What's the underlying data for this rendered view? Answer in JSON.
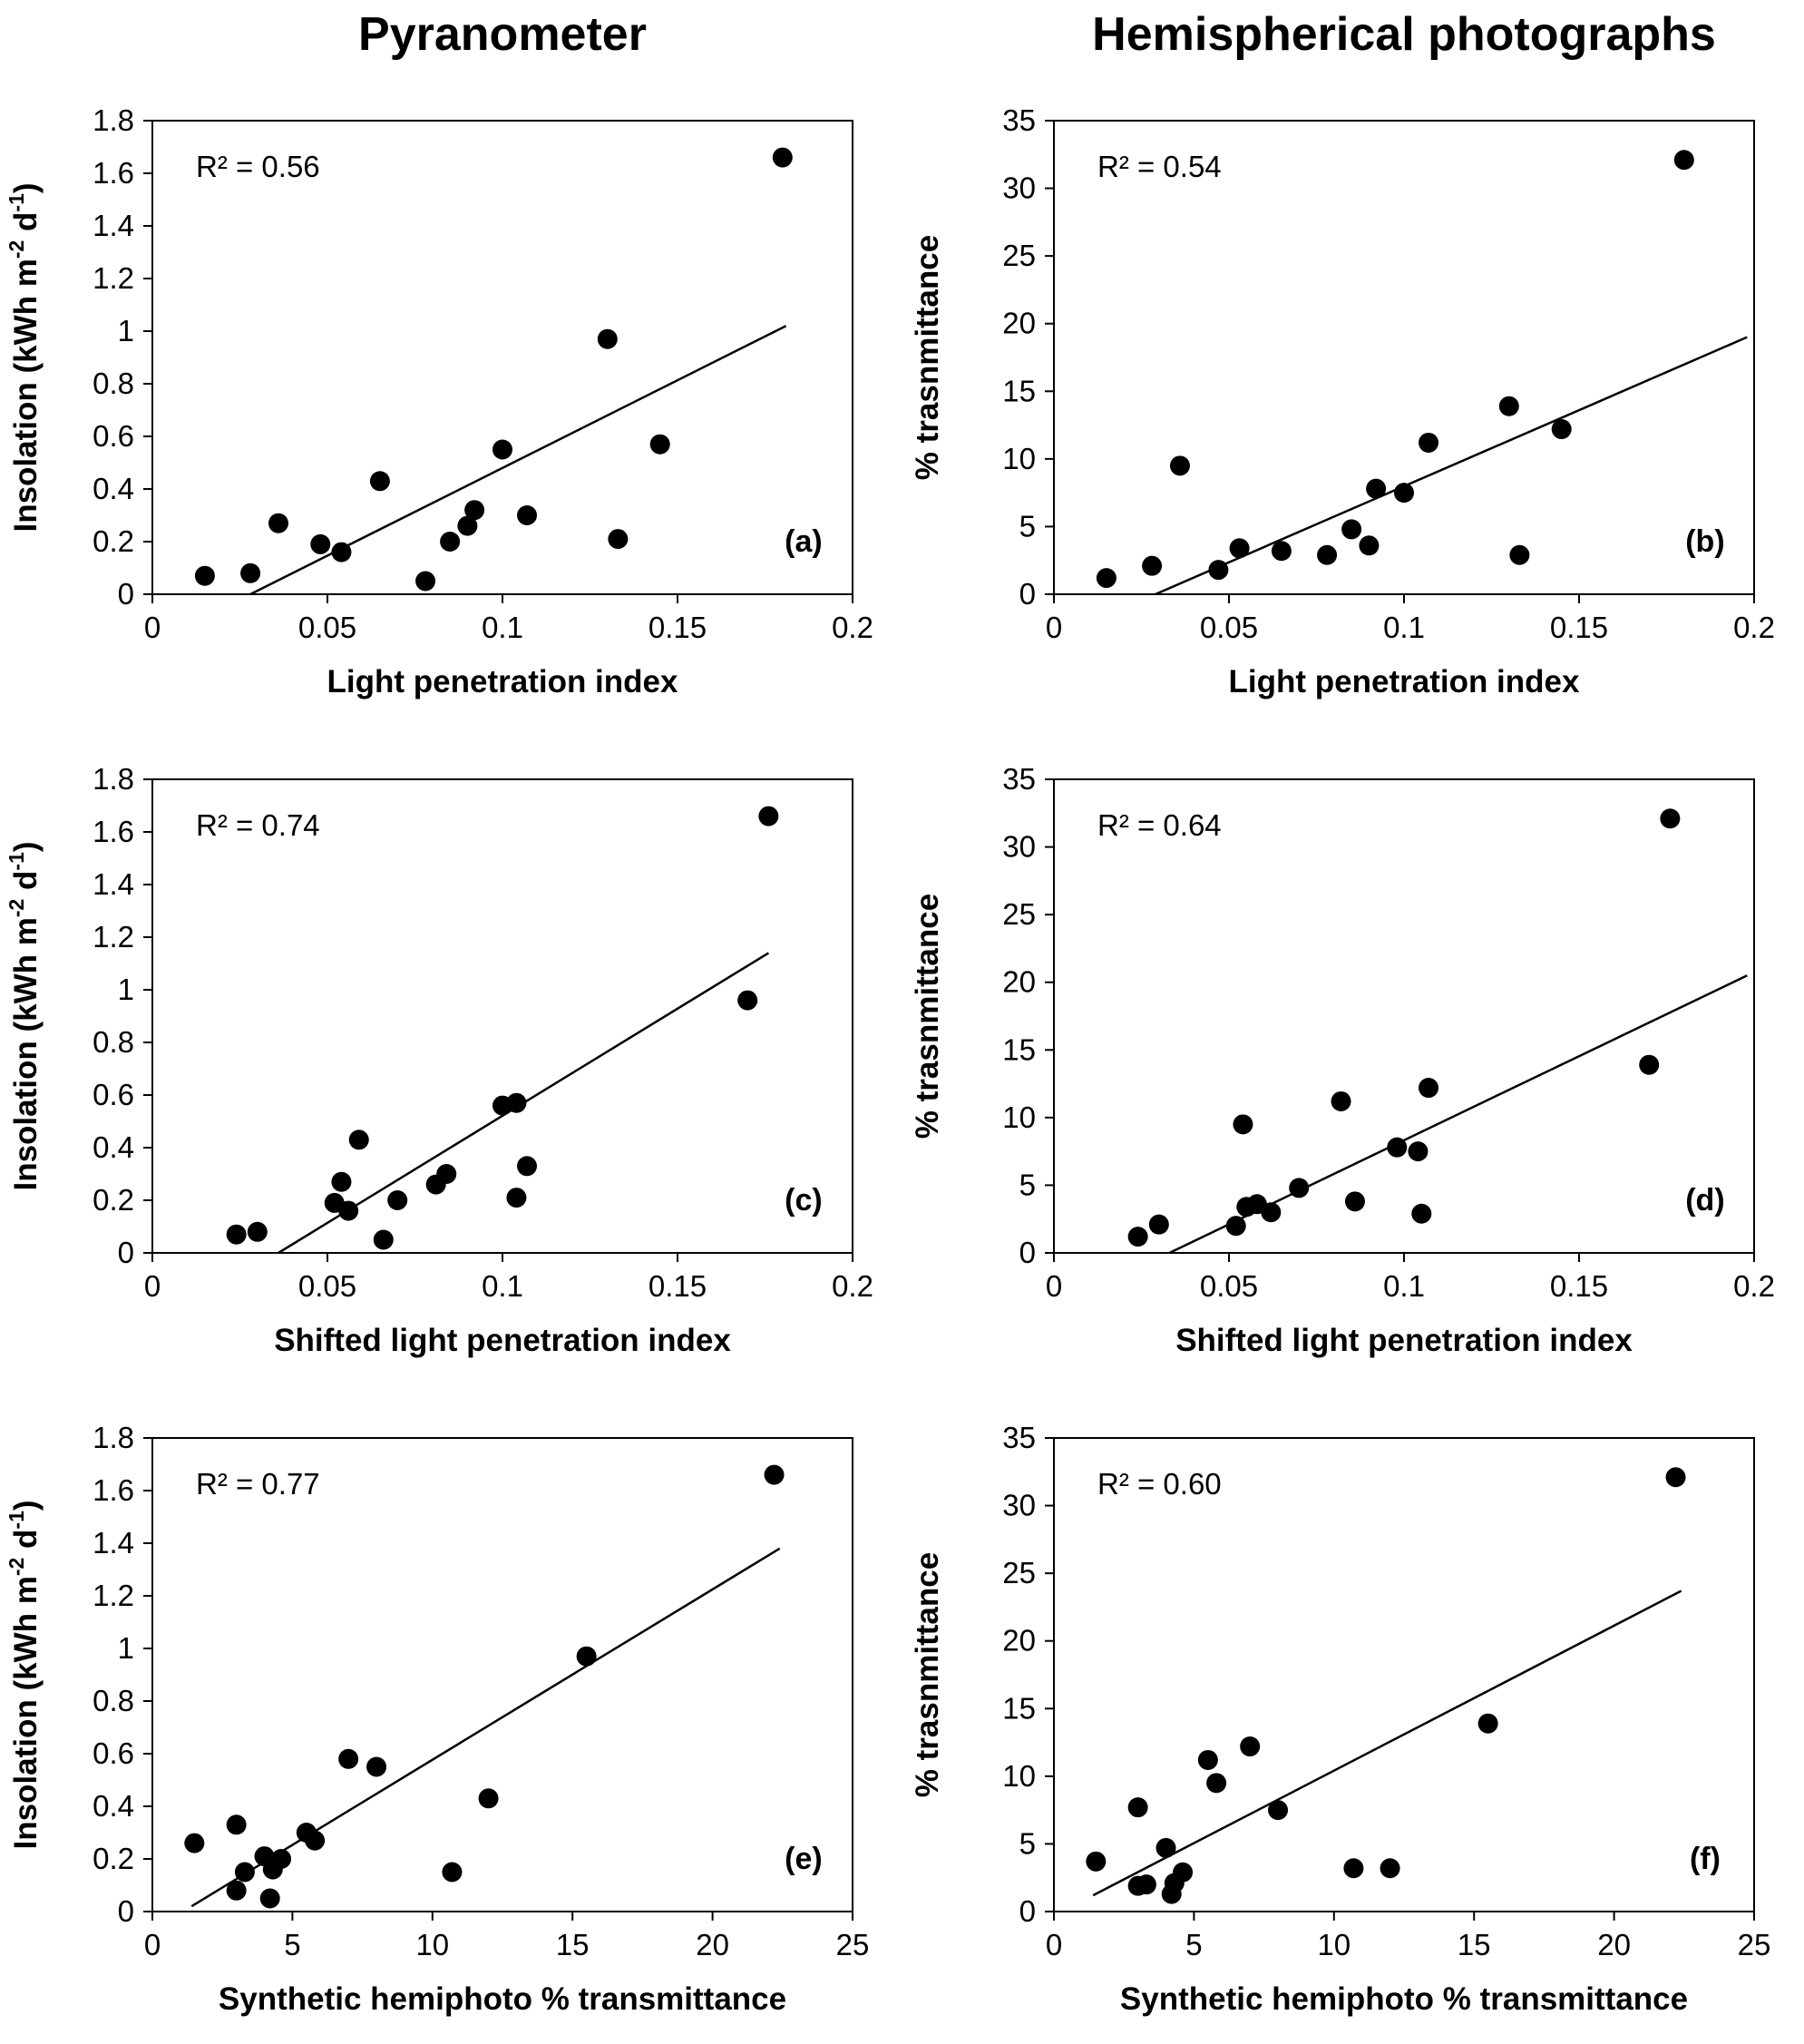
{
  "figure": {
    "background": "#ffffff",
    "foreground": "#000000",
    "column_titles": [
      "Pyranometer",
      "Hemispherical photographs"
    ]
  },
  "chart_data": [
    {
      "type": "scatter",
      "panel_label": "(a)",
      "annotation": "R² = 0.56",
      "xlabel": "Light penetration index",
      "ylabel": "Insolation (kWh m⁻² d⁻¹)",
      "ylabel_parts": [
        {
          "t": "Insolation (kWh m"
        },
        {
          "t": "-2",
          "sup": true
        },
        {
          "t": " d"
        },
        {
          "t": "-1",
          "sup": true
        },
        {
          "t": ")"
        }
      ],
      "xlim": [
        0,
        0.2
      ],
      "ylim": [
        0,
        1.8
      ],
      "xticks": {
        "values": [
          0,
          0.05,
          0.1,
          0.15,
          0.2
        ],
        "labels": [
          "0",
          "0.05",
          "0.1",
          "0.15",
          "0.2"
        ]
      },
      "yticks": {
        "values": [
          0,
          0.2,
          0.4,
          0.6,
          0.8,
          1,
          1.2,
          1.4,
          1.6,
          1.8
        ],
        "labels": [
          "0",
          "0.2",
          "0.4",
          "0.6",
          "0.8",
          "1",
          "1.2",
          "1.4",
          "1.6",
          "1.8"
        ]
      },
      "marker_color": "#000000",
      "line_color": "#000000",
      "grid": false,
      "points": [
        [
          0.015,
          0.07
        ],
        [
          0.028,
          0.08
        ],
        [
          0.036,
          0.27
        ],
        [
          0.048,
          0.19
        ],
        [
          0.054,
          0.16
        ],
        [
          0.065,
          0.43
        ],
        [
          0.078,
          0.05
        ],
        [
          0.085,
          0.2
        ],
        [
          0.09,
          0.26
        ],
        [
          0.092,
          0.32
        ],
        [
          0.1,
          0.55
        ],
        [
          0.107,
          0.3
        ],
        [
          0.13,
          0.97
        ],
        [
          0.133,
          0.21
        ],
        [
          0.145,
          0.57
        ],
        [
          0.18,
          1.66
        ]
      ],
      "trendline": [
        [
          0.028,
          0
        ],
        [
          0.181,
          1.02
        ]
      ]
    },
    {
      "type": "scatter",
      "panel_label": "(b)",
      "annotation": "R² = 0.54",
      "xlabel": "Light penetration index",
      "ylabel": "% trasnmittance",
      "ylabel_parts": [
        {
          "t": "% trasnmittance"
        }
      ],
      "xlim": [
        0,
        0.2
      ],
      "ylim": [
        0,
        35
      ],
      "xticks": {
        "values": [
          0,
          0.05,
          0.1,
          0.15,
          0.2
        ],
        "labels": [
          "0",
          "0.05",
          "0.1",
          "0.15",
          "0.2"
        ]
      },
      "yticks": {
        "values": [
          0,
          5,
          10,
          15,
          20,
          25,
          30,
          35
        ],
        "labels": [
          "0",
          "5",
          "10",
          "15",
          "20",
          "25",
          "30",
          "35"
        ]
      },
      "marker_color": "#000000",
      "line_color": "#000000",
      "grid": false,
      "points": [
        [
          0.015,
          1.2
        ],
        [
          0.028,
          2.1
        ],
        [
          0.036,
          9.5
        ],
        [
          0.047,
          1.8
        ],
        [
          0.053,
          3.4
        ],
        [
          0.065,
          3.2
        ],
        [
          0.078,
          2.9
        ],
        [
          0.085,
          4.8
        ],
        [
          0.09,
          3.6
        ],
        [
          0.092,
          7.8
        ],
        [
          0.1,
          7.5
        ],
        [
          0.107,
          11.2
        ],
        [
          0.13,
          13.9
        ],
        [
          0.133,
          2.9
        ],
        [
          0.145,
          12.2
        ],
        [
          0.18,
          32.1
        ]
      ],
      "trendline": [
        [
          0.029,
          0
        ],
        [
          0.198,
          19.0
        ]
      ]
    },
    {
      "type": "scatter",
      "panel_label": "(c)",
      "annotation": "R² = 0.74",
      "xlabel": "Shifted light penetration index",
      "ylabel": "Insolation (kWh m⁻² d⁻¹)",
      "ylabel_parts": [
        {
          "t": "Insolation (kWh m"
        },
        {
          "t": "-2",
          "sup": true
        },
        {
          "t": " d"
        },
        {
          "t": "-1",
          "sup": true
        },
        {
          "t": ")"
        }
      ],
      "xlim": [
        0,
        0.2
      ],
      "ylim": [
        0,
        1.8
      ],
      "xticks": {
        "values": [
          0,
          0.05,
          0.1,
          0.15,
          0.2
        ],
        "labels": [
          "0",
          "0.05",
          "0.1",
          "0.15",
          "0.2"
        ]
      },
      "yticks": {
        "values": [
          0,
          0.2,
          0.4,
          0.6,
          0.8,
          1,
          1.2,
          1.4,
          1.6,
          1.8
        ],
        "labels": [
          "0",
          "0.2",
          "0.4",
          "0.6",
          "0.8",
          "1",
          "1.2",
          "1.4",
          "1.6",
          "1.8"
        ]
      },
      "marker_color": "#000000",
      "line_color": "#000000",
      "grid": false,
      "points": [
        [
          0.024,
          0.07
        ],
        [
          0.03,
          0.08
        ],
        [
          0.052,
          0.19
        ],
        [
          0.054,
          0.27
        ],
        [
          0.056,
          0.16
        ],
        [
          0.059,
          0.43
        ],
        [
          0.066,
          0.05
        ],
        [
          0.07,
          0.2
        ],
        [
          0.081,
          0.26
        ],
        [
          0.084,
          0.3
        ],
        [
          0.1,
          0.56
        ],
        [
          0.104,
          0.57
        ],
        [
          0.104,
          0.21
        ],
        [
          0.107,
          0.33
        ],
        [
          0.17,
          0.96
        ],
        [
          0.176,
          1.66
        ]
      ],
      "trendline": [
        [
          0.036,
          0
        ],
        [
          0.176,
          1.14
        ]
      ]
    },
    {
      "type": "scatter",
      "panel_label": "(d)",
      "annotation": "R² = 0.64",
      "xlabel": "Shifted light penetration index",
      "ylabel": "% trasnmittance",
      "ylabel_parts": [
        {
          "t": "% trasnmittance"
        }
      ],
      "xlim": [
        0,
        0.2
      ],
      "ylim": [
        0,
        35
      ],
      "xticks": {
        "values": [
          0,
          0.05,
          0.1,
          0.15,
          0.2
        ],
        "labels": [
          "0",
          "0.05",
          "0.1",
          "0.15",
          "0.2"
        ]
      },
      "yticks": {
        "values": [
          0,
          5,
          10,
          15,
          20,
          25,
          30,
          35
        ],
        "labels": [
          "0",
          "5",
          "10",
          "15",
          "20",
          "25",
          "30",
          "35"
        ]
      },
      "marker_color": "#000000",
      "line_color": "#000000",
      "grid": false,
      "points": [
        [
          0.024,
          1.2
        ],
        [
          0.03,
          2.1
        ],
        [
          0.052,
          2.0
        ],
        [
          0.054,
          9.5
        ],
        [
          0.055,
          3.4
        ],
        [
          0.058,
          3.6
        ],
        [
          0.062,
          3.0
        ],
        [
          0.07,
          4.8
        ],
        [
          0.082,
          11.2
        ],
        [
          0.086,
          3.8
        ],
        [
          0.098,
          7.8
        ],
        [
          0.104,
          7.5
        ],
        [
          0.105,
          2.9
        ],
        [
          0.107,
          12.2
        ],
        [
          0.17,
          13.9
        ],
        [
          0.176,
          32.1
        ]
      ],
      "trendline": [
        [
          0.033,
          0
        ],
        [
          0.198,
          20.5
        ]
      ]
    },
    {
      "type": "scatter",
      "panel_label": "(e)",
      "annotation": "R² = 0.77",
      "xlabel": "Synthetic hemiphoto % transmittance",
      "ylabel": "Insolation (kWh m⁻² d⁻¹)",
      "ylabel_parts": [
        {
          "t": "Insolation (kWh m"
        },
        {
          "t": "-2",
          "sup": true
        },
        {
          "t": " d"
        },
        {
          "t": "-1",
          "sup": true
        },
        {
          "t": ")"
        }
      ],
      "xlim": [
        0,
        25
      ],
      "ylim": [
        0,
        1.8
      ],
      "xticks": {
        "values": [
          0,
          5,
          10,
          15,
          20,
          25
        ],
        "labels": [
          "0",
          "5",
          "10",
          "15",
          "20",
          "25"
        ]
      },
      "yticks": {
        "values": [
          0,
          0.2,
          0.4,
          0.6,
          0.8,
          1,
          1.2,
          1.4,
          1.6,
          1.8
        ],
        "labels": [
          "0",
          "0.2",
          "0.4",
          "0.6",
          "0.8",
          "1",
          "1.2",
          "1.4",
          "1.6",
          "1.8"
        ]
      },
      "marker_color": "#000000",
      "line_color": "#000000",
      "grid": false,
      "points": [
        [
          1.5,
          0.26
        ],
        [
          3.0,
          0.33
        ],
        [
          3.0,
          0.08
        ],
        [
          3.3,
          0.15
        ],
        [
          4.0,
          0.21
        ],
        [
          4.2,
          0.05
        ],
        [
          4.3,
          0.16
        ],
        [
          4.6,
          0.2
        ],
        [
          5.5,
          0.3
        ],
        [
          5.8,
          0.27
        ],
        [
          7.0,
          0.58
        ],
        [
          8.0,
          0.55
        ],
        [
          10.7,
          0.15
        ],
        [
          12.0,
          0.43
        ],
        [
          15.5,
          0.97
        ],
        [
          22.2,
          1.66
        ]
      ],
      "trendline": [
        [
          1.4,
          0.02
        ],
        [
          22.4,
          1.38
        ]
      ]
    },
    {
      "type": "scatter",
      "panel_label": "(f)",
      "annotation": "R² = 0.60",
      "xlabel": "Synthetic hemiphoto % transmittance",
      "ylabel": "% trasnmittance",
      "ylabel_parts": [
        {
          "t": "% trasnmittance"
        }
      ],
      "xlim": [
        0,
        25
      ],
      "ylim": [
        0,
        35
      ],
      "xticks": {
        "values": [
          0,
          5,
          10,
          15,
          20,
          25
        ],
        "labels": [
          "0",
          "5",
          "10",
          "15",
          "20",
          "25"
        ]
      },
      "yticks": {
        "values": [
          0,
          5,
          10,
          15,
          20,
          25,
          30,
          35
        ],
        "labels": [
          "0",
          "5",
          "10",
          "15",
          "20",
          "25",
          "30",
          "35"
        ]
      },
      "marker_color": "#000000",
      "line_color": "#000000",
      "grid": false,
      "points": [
        [
          1.5,
          3.7
        ],
        [
          3.0,
          7.7
        ],
        [
          3.0,
          1.9
        ],
        [
          3.3,
          2.0
        ],
        [
          4.0,
          4.7
        ],
        [
          4.2,
          1.3
        ],
        [
          4.3,
          2.1
        ],
        [
          4.6,
          2.9
        ],
        [
          5.5,
          11.2
        ],
        [
          5.8,
          9.5
        ],
        [
          7.0,
          12.2
        ],
        [
          8.0,
          7.5
        ],
        [
          10.7,
          3.2
        ],
        [
          12.0,
          3.2
        ],
        [
          15.5,
          13.9
        ],
        [
          22.2,
          32.1
        ]
      ],
      "trendline": [
        [
          1.4,
          1.2
        ],
        [
          22.4,
          23.7
        ]
      ]
    }
  ]
}
